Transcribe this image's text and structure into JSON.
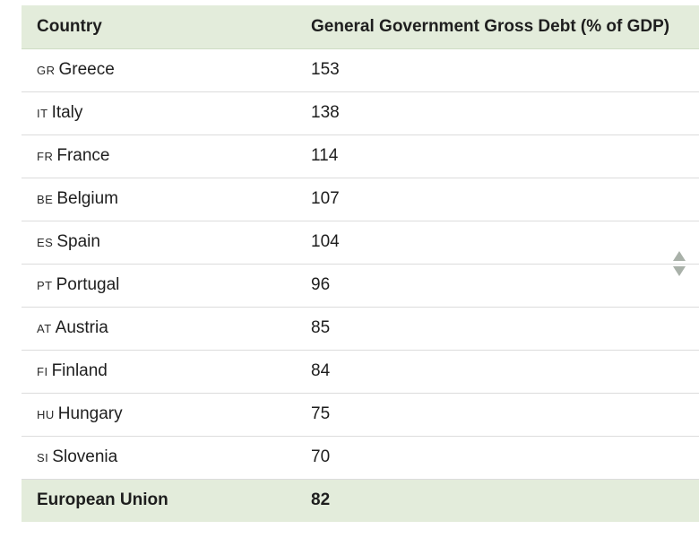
{
  "table": {
    "headers": {
      "country": "Country",
      "debt": "General Government Gross Debt (% of GDP)"
    },
    "sort_icon": "sort-arrows-icon",
    "rows": [
      {
        "code": "GR",
        "country": "Greece",
        "debt": "153"
      },
      {
        "code": "IT",
        "country": "Italy",
        "debt": "138"
      },
      {
        "code": "FR",
        "country": "France",
        "debt": "114"
      },
      {
        "code": "BE",
        "country": "Belgium",
        "debt": "107"
      },
      {
        "code": "ES",
        "country": "Spain",
        "debt": "104"
      },
      {
        "code": "PT",
        "country": "Portugal",
        "debt": "96"
      },
      {
        "code": "AT",
        "country": "Austria",
        "debt": "85"
      },
      {
        "code": "FI",
        "country": "Finland",
        "debt": "84"
      },
      {
        "code": "HU",
        "country": "Hungary",
        "debt": "75"
      },
      {
        "code": "SI",
        "country": "Slovenia",
        "debt": "70"
      }
    ],
    "footer": {
      "country": "European Union",
      "debt": "82"
    }
  },
  "colors": {
    "header_bg": "#e3ecdb",
    "sort_icon": "#a9b1a9"
  }
}
